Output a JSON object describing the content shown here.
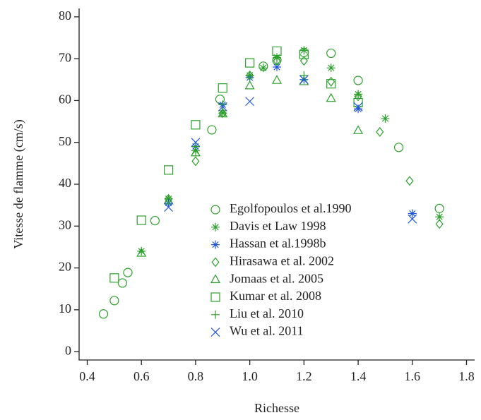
{
  "chart_data": {
    "type": "scatter",
    "xlabel": "Richesse",
    "ylabel": "Vitesse de flamme (cm/s)",
    "xlim": [
      0.37,
      1.83
    ],
    "ylim": [
      -2,
      82
    ],
    "xticks": [
      {
        "value": 0.4,
        "label": "0.4"
      },
      {
        "value": 0.6,
        "label": "0.6"
      },
      {
        "value": 0.8,
        "label": "0.8"
      },
      {
        "value": 1.0,
        "label": "1.0"
      },
      {
        "value": 1.2,
        "label": "1.2"
      },
      {
        "value": 1.4,
        "label": "1.4"
      },
      {
        "value": 1.6,
        "label": "1.6"
      },
      {
        "value": 1.8,
        "label": "1.8"
      }
    ],
    "yticks": [
      0,
      10,
      20,
      30,
      40,
      50,
      60,
      70,
      80
    ],
    "series": [
      {
        "name": "Egolfopoulos et al.1990",
        "marker": "circle",
        "color": "#2ca02c",
        "x": [
          0.46,
          0.5,
          0.53,
          0.55,
          0.65,
          0.86,
          0.89,
          1.05,
          1.1,
          1.2,
          1.3,
          1.4,
          1.55,
          1.7
        ],
        "values": [
          9,
          12.2,
          16.4,
          18.9,
          31.3,
          53,
          60.3,
          68.2,
          69.6,
          71.5,
          71.3,
          64.8,
          48.8,
          34.2
        ]
      },
      {
        "name": "Davis et Law 1998",
        "marker": "asterisk",
        "color": "#2ca02c",
        "x": [
          0.6,
          0.7,
          0.8,
          0.9,
          1.0,
          1.05,
          1.1,
          1.2,
          1.3,
          1.4,
          1.5,
          1.7
        ],
        "values": [
          24,
          36.5,
          48,
          57,
          66,
          67.8,
          70.3,
          72,
          67.8,
          61.5,
          55.7,
          32.2
        ]
      },
      {
        "name": "Hassan et al.1998b",
        "marker": "asterisk",
        "color": "#2255dd",
        "x": [
          0.7,
          0.8,
          0.9,
          1.0,
          1.1,
          1.2,
          1.4,
          1.6
        ],
        "values": [
          35.5,
          49,
          59,
          65.5,
          68,
          65,
          58,
          33
        ]
      },
      {
        "name": "Hirasawa et al. 2002",
        "marker": "diamond",
        "color": "#2ca02c",
        "x": [
          0.7,
          0.8,
          0.9,
          1.0,
          1.1,
          1.2,
          1.3,
          1.4,
          1.48,
          1.59,
          1.7
        ],
        "values": [
          36.5,
          45.5,
          57,
          66,
          69.5,
          69.5,
          64.5,
          61,
          52.5,
          40.8,
          30.5
        ]
      },
      {
        "name": "Jomaas et al. 2005",
        "marker": "triangle",
        "color": "#2ca02c",
        "x": [
          0.6,
          0.7,
          0.8,
          0.9,
          1.0,
          1.1,
          1.2,
          1.3,
          1.4
        ],
        "values": [
          23.5,
          36,
          47.5,
          56.8,
          63.5,
          64.8,
          64.5,
          60.5,
          52.8
        ]
      },
      {
        "name": "Kumar et al. 2008",
        "marker": "square",
        "color": "#2ca02c",
        "x": [
          0.5,
          0.6,
          0.7,
          0.8,
          0.9,
          1.0,
          1.1,
          1.2,
          1.3,
          1.4
        ],
        "values": [
          17.6,
          31.4,
          43.4,
          54.2,
          63,
          69,
          71.8,
          71,
          64,
          59.5
        ]
      },
      {
        "name": "Liu et al. 2010",
        "marker": "plus",
        "color": "#2ca02c",
        "x": [
          0.8,
          0.9,
          1.0,
          1.1,
          1.2,
          1.4
        ],
        "values": [
          49,
          59,
          66,
          70,
          66,
          61.5
        ]
      },
      {
        "name": "Wu et al. 2011",
        "marker": "x",
        "color": "#2255dd",
        "x": [
          0.7,
          0.8,
          0.9,
          1.0,
          1.2,
          1.4,
          1.6
        ],
        "values": [
          34.5,
          50,
          58.5,
          59.8,
          65,
          58.5,
          31.7
        ]
      }
    ]
  }
}
